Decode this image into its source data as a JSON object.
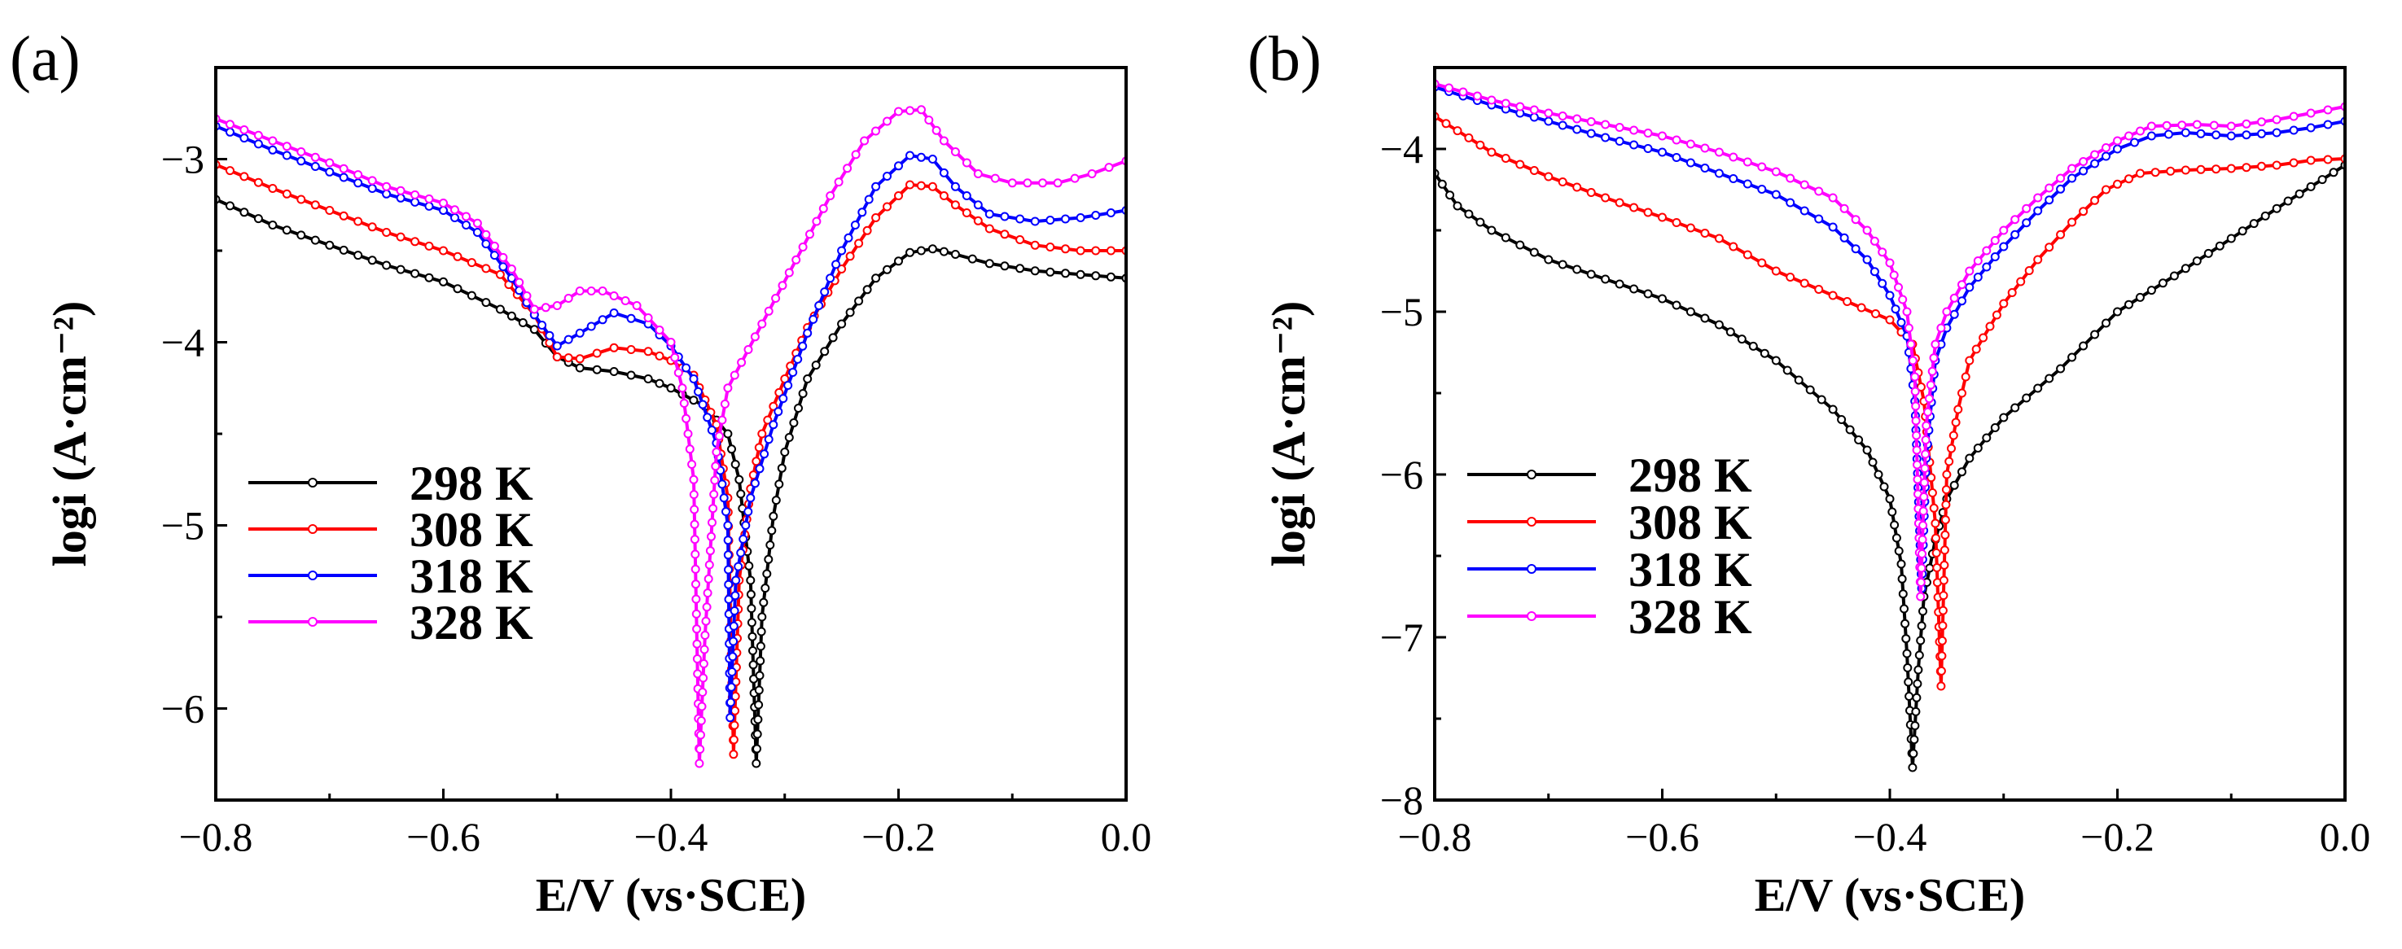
{
  "chart_data": [
    {
      "panel_label": "(a)",
      "type": "line",
      "xlabel": "E/V (vs·SCE)",
      "ylabel": "logi (A·cm⁻²)",
      "xlim": [
        -0.8,
        0.0
      ],
      "ylim": [
        -6.5,
        -2.5
      ],
      "x_ticks": [
        -0.8,
        -0.6,
        -0.4,
        -0.2,
        0.0
      ],
      "x_tick_labels": [
        "−0.8",
        "−0.6",
        "−0.4",
        "−0.2",
        "0.0"
      ],
      "y_ticks": [
        -6,
        -5,
        -4,
        -3
      ],
      "y_tick_labels": [
        "−6",
        "−5",
        "−4",
        "−3"
      ],
      "legend_position": "lower-left",
      "series": [
        {
          "name": "298 K",
          "color": "#000000",
          "points": [
            [
              -0.8,
              -3.22
            ],
            [
              -0.75,
              -3.36
            ],
            [
              -0.7,
              -3.47
            ],
            [
              -0.65,
              -3.58
            ],
            [
              -0.6,
              -3.67
            ],
            [
              -0.55,
              -3.82
            ],
            [
              -0.52,
              -3.93
            ],
            [
              -0.5,
              -4.08
            ],
            [
              -0.48,
              -4.14
            ],
            [
              -0.45,
              -4.16
            ],
            [
              -0.42,
              -4.2
            ],
            [
              -0.4,
              -4.25
            ],
            [
              -0.37,
              -4.35
            ],
            [
              -0.35,
              -4.5
            ],
            [
              -0.34,
              -4.75
            ],
            [
              -0.33,
              -5.3
            ],
            [
              -0.325,
              -6.3
            ],
            [
              -0.32,
              -5.5
            ],
            [
              -0.31,
              -4.95
            ],
            [
              -0.3,
              -4.6
            ],
            [
              -0.28,
              -4.2
            ],
            [
              -0.25,
              -3.9
            ],
            [
              -0.22,
              -3.65
            ],
            [
              -0.19,
              -3.51
            ],
            [
              -0.17,
              -3.49
            ],
            [
              -0.15,
              -3.52
            ],
            [
              -0.12,
              -3.57
            ],
            [
              -0.08,
              -3.61
            ],
            [
              -0.04,
              -3.63
            ],
            [
              0.0,
              -3.65
            ]
          ]
        },
        {
          "name": "308 K",
          "color": "#ff0000",
          "points": [
            [
              -0.8,
              -3.03
            ],
            [
              -0.75,
              -3.16
            ],
            [
              -0.7,
              -3.28
            ],
            [
              -0.65,
              -3.4
            ],
            [
              -0.6,
              -3.5
            ],
            [
              -0.55,
              -3.63
            ],
            [
              -0.52,
              -3.85
            ],
            [
              -0.5,
              -4.08
            ],
            [
              -0.48,
              -4.09
            ],
            [
              -0.45,
              -4.03
            ],
            [
              -0.42,
              -4.05
            ],
            [
              -0.4,
              -4.1
            ],
            [
              -0.38,
              -4.18
            ],
            [
              -0.36,
              -4.45
            ],
            [
              -0.35,
              -4.85
            ],
            [
              -0.345,
              -6.25
            ],
            [
              -0.34,
              -5.3
            ],
            [
              -0.33,
              -4.8
            ],
            [
              -0.32,
              -4.5
            ],
            [
              -0.3,
              -4.2
            ],
            [
              -0.28,
              -3.92
            ],
            [
              -0.25,
              -3.6
            ],
            [
              -0.22,
              -3.32
            ],
            [
              -0.19,
              -3.14
            ],
            [
              -0.17,
              -3.15
            ],
            [
              -0.15,
              -3.25
            ],
            [
              -0.12,
              -3.38
            ],
            [
              -0.08,
              -3.47
            ],
            [
              -0.04,
              -3.5
            ],
            [
              0.0,
              -3.5
            ]
          ]
        },
        {
          "name": "318 K",
          "color": "#0000ff",
          "points": [
            [
              -0.8,
              -2.82
            ],
            [
              -0.75,
              -2.95
            ],
            [
              -0.7,
              -3.07
            ],
            [
              -0.65,
              -3.19
            ],
            [
              -0.6,
              -3.28
            ],
            [
              -0.57,
              -3.4
            ],
            [
              -0.54,
              -3.65
            ],
            [
              -0.52,
              -3.85
            ],
            [
              -0.5,
              -4.02
            ],
            [
              -0.48,
              -3.95
            ],
            [
              -0.45,
              -3.84
            ],
            [
              -0.42,
              -3.9
            ],
            [
              -0.4,
              -4.02
            ],
            [
              -0.38,
              -4.2
            ],
            [
              -0.36,
              -4.55
            ],
            [
              -0.35,
              -5.0
            ],
            [
              -0.348,
              -6.05
            ],
            [
              -0.343,
              -5.3
            ],
            [
              -0.33,
              -4.85
            ],
            [
              -0.31,
              -4.45
            ],
            [
              -0.28,
              -3.95
            ],
            [
              -0.25,
              -3.5
            ],
            [
              -0.22,
              -3.15
            ],
            [
              -0.19,
              -2.98
            ],
            [
              -0.17,
              -3.0
            ],
            [
              -0.15,
              -3.15
            ],
            [
              -0.12,
              -3.3
            ],
            [
              -0.08,
              -3.34
            ],
            [
              -0.04,
              -3.32
            ],
            [
              0.0,
              -3.28
            ]
          ]
        },
        {
          "name": "328 K",
          "color": "#ff00ff",
          "points": [
            [
              -0.8,
              -2.78
            ],
            [
              -0.75,
              -2.9
            ],
            [
              -0.7,
              -3.02
            ],
            [
              -0.65,
              -3.15
            ],
            [
              -0.6,
              -3.24
            ],
            [
              -0.57,
              -3.35
            ],
            [
              -0.54,
              -3.6
            ],
            [
              -0.52,
              -3.82
            ],
            [
              -0.5,
              -3.8
            ],
            [
              -0.48,
              -3.72
            ],
            [
              -0.46,
              -3.72
            ],
            [
              -0.43,
              -3.8
            ],
            [
              -0.4,
              -4.0
            ],
            [
              -0.39,
              -4.25
            ],
            [
              -0.38,
              -4.75
            ],
            [
              -0.375,
              -6.3
            ],
            [
              -0.37,
              -5.6
            ],
            [
              -0.36,
              -4.6
            ],
            [
              -0.35,
              -4.25
            ],
            [
              -0.32,
              -3.9
            ],
            [
              -0.29,
              -3.55
            ],
            [
              -0.26,
              -3.2
            ],
            [
              -0.23,
              -2.9
            ],
            [
              -0.2,
              -2.74
            ],
            [
              -0.18,
              -2.73
            ],
            [
              -0.16,
              -2.9
            ],
            [
              -0.13,
              -3.08
            ],
            [
              -0.1,
              -3.13
            ],
            [
              -0.06,
              -3.13
            ],
            [
              -0.03,
              -3.08
            ],
            [
              0.0,
              -3.01
            ]
          ]
        }
      ]
    },
    {
      "panel_label": "(b)",
      "type": "line",
      "xlabel": "E/V (vs·SCE)",
      "ylabel": "logi (A·cm⁻²)",
      "xlim": [
        -0.8,
        0.0
      ],
      "ylim": [
        -8.0,
        -3.5
      ],
      "x_ticks": [
        -0.8,
        -0.6,
        -0.4,
        -0.2,
        0.0
      ],
      "x_tick_labels": [
        "−0.8",
        "−0.6",
        "−0.4",
        "−0.2",
        "0.0"
      ],
      "y_ticks": [
        -8,
        -7,
        -6,
        -5,
        -4
      ],
      "y_tick_labels": [
        "−8",
        "−7",
        "−6",
        "−5",
        "−4"
      ],
      "legend_position": "lower-left",
      "series": [
        {
          "name": "298 K",
          "color": "#000000",
          "points": [
            [
              -0.8,
              -4.15
            ],
            [
              -0.78,
              -4.35
            ],
            [
              -0.75,
              -4.5
            ],
            [
              -0.7,
              -4.68
            ],
            [
              -0.65,
              -4.8
            ],
            [
              -0.6,
              -4.92
            ],
            [
              -0.55,
              -5.08
            ],
            [
              -0.5,
              -5.3
            ],
            [
              -0.45,
              -5.6
            ],
            [
              -0.42,
              -5.85
            ],
            [
              -0.4,
              -6.15
            ],
            [
              -0.39,
              -6.55
            ],
            [
              -0.385,
              -7.1
            ],
            [
              -0.38,
              -7.8
            ],
            [
              -0.375,
              -7.2
            ],
            [
              -0.37,
              -6.75
            ],
            [
              -0.36,
              -6.4
            ],
            [
              -0.35,
              -6.15
            ],
            [
              -0.33,
              -5.9
            ],
            [
              -0.3,
              -5.65
            ],
            [
              -0.25,
              -5.35
            ],
            [
              -0.2,
              -5.0
            ],
            [
              -0.15,
              -4.78
            ],
            [
              -0.1,
              -4.55
            ],
            [
              -0.05,
              -4.32
            ],
            [
              0.0,
              -4.1
            ]
          ]
        },
        {
          "name": "308 K",
          "color": "#ff0000",
          "points": [
            [
              -0.8,
              -3.8
            ],
            [
              -0.75,
              -4.02
            ],
            [
              -0.7,
              -4.17
            ],
            [
              -0.65,
              -4.3
            ],
            [
              -0.6,
              -4.42
            ],
            [
              -0.55,
              -4.55
            ],
            [
              -0.5,
              -4.75
            ],
            [
              -0.45,
              -4.9
            ],
            [
              -0.4,
              -5.05
            ],
            [
              -0.38,
              -5.2
            ],
            [
              -0.37,
              -5.55
            ],
            [
              -0.36,
              -6.3
            ],
            [
              -0.355,
              -7.3
            ],
            [
              -0.35,
              -6.0
            ],
            [
              -0.34,
              -5.6
            ],
            [
              -0.33,
              -5.3
            ],
            [
              -0.3,
              -4.95
            ],
            [
              -0.27,
              -4.68
            ],
            [
              -0.24,
              -4.45
            ],
            [
              -0.21,
              -4.25
            ],
            [
              -0.18,
              -4.15
            ],
            [
              -0.14,
              -4.13
            ],
            [
              -0.1,
              -4.12
            ],
            [
              -0.06,
              -4.1
            ],
            [
              -0.03,
              -4.07
            ],
            [
              0.0,
              -4.06
            ]
          ]
        },
        {
          "name": "318 K",
          "color": "#0000ff",
          "points": [
            [
              -0.8,
              -3.62
            ],
            [
              -0.75,
              -3.73
            ],
            [
              -0.7,
              -3.83
            ],
            [
              -0.65,
              -3.93
            ],
            [
              -0.6,
              -4.02
            ],
            [
              -0.55,
              -4.15
            ],
            [
              -0.5,
              -4.28
            ],
            [
              -0.45,
              -4.48
            ],
            [
              -0.42,
              -4.68
            ],
            [
              -0.4,
              -4.9
            ],
            [
              -0.385,
              -5.15
            ],
            [
              -0.378,
              -5.55
            ],
            [
              -0.372,
              -6.7
            ],
            [
              -0.368,
              -5.9
            ],
            [
              -0.36,
              -5.3
            ],
            [
              -0.35,
              -5.1
            ],
            [
              -0.33,
              -4.85
            ],
            [
              -0.3,
              -4.6
            ],
            [
              -0.27,
              -4.38
            ],
            [
              -0.24,
              -4.18
            ],
            [
              -0.2,
              -4.0
            ],
            [
              -0.17,
              -3.92
            ],
            [
              -0.14,
              -3.9
            ],
            [
              -0.1,
              -3.92
            ],
            [
              -0.06,
              -3.9
            ],
            [
              -0.03,
              -3.87
            ],
            [
              0.0,
              -3.83
            ]
          ]
        },
        {
          "name": "328 K",
          "color": "#ff00ff",
          "points": [
            [
              -0.8,
              -3.6
            ],
            [
              -0.75,
              -3.7
            ],
            [
              -0.7,
              -3.78
            ],
            [
              -0.65,
              -3.85
            ],
            [
              -0.6,
              -3.92
            ],
            [
              -0.55,
              -4.02
            ],
            [
              -0.5,
              -4.14
            ],
            [
              -0.45,
              -4.3
            ],
            [
              -0.42,
              -4.5
            ],
            [
              -0.4,
              -4.7
            ],
            [
              -0.385,
              -5.0
            ],
            [
              -0.378,
              -5.4
            ],
            [
              -0.373,
              -6.75
            ],
            [
              -0.368,
              -5.7
            ],
            [
              -0.36,
              -5.2
            ],
            [
              -0.35,
              -5.0
            ],
            [
              -0.33,
              -4.75
            ],
            [
              -0.3,
              -4.5
            ],
            [
              -0.27,
              -4.3
            ],
            [
              -0.24,
              -4.12
            ],
            [
              -0.2,
              -3.95
            ],
            [
              -0.17,
              -3.86
            ],
            [
              -0.13,
              -3.85
            ],
            [
              -0.1,
              -3.86
            ],
            [
              -0.06,
              -3.82
            ],
            [
              -0.03,
              -3.78
            ],
            [
              0.0,
              -3.74
            ]
          ]
        }
      ]
    }
  ]
}
